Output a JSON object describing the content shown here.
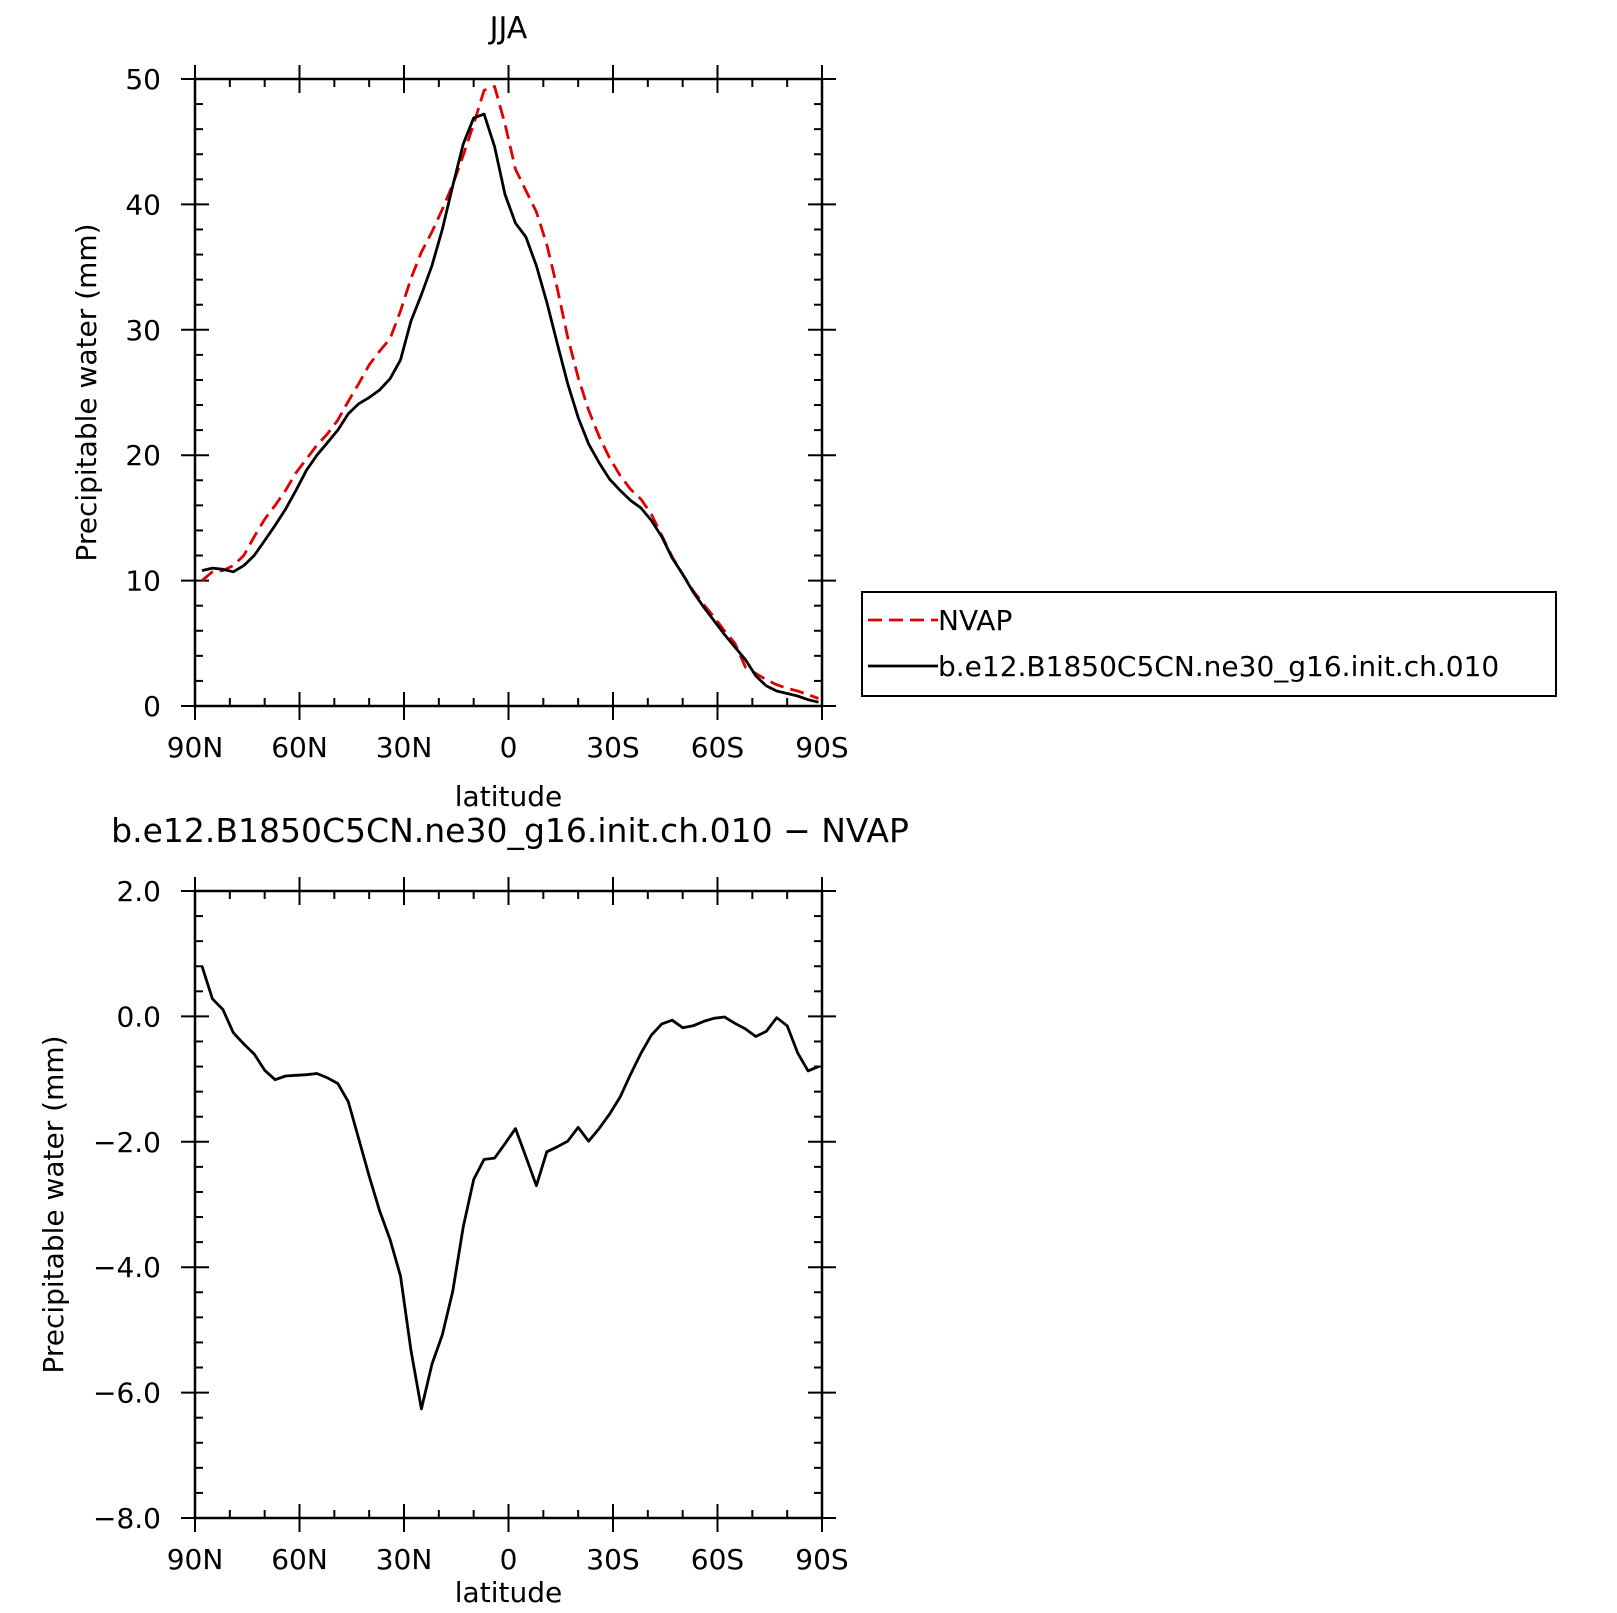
{
  "chart_data": [
    {
      "type": "line",
      "title": "JJA",
      "xlabel": "latitude",
      "ylabel": "Precipitable water (mm)",
      "xlim": [
        90,
        -90
      ],
      "ylim": [
        0,
        50
      ],
      "xticks": [
        90,
        60,
        30,
        0,
        -30,
        -60,
        -90
      ],
      "xtick_labels": [
        "90N",
        "60N",
        "30N",
        "0",
        "30S",
        "60S",
        "90S"
      ],
      "yticks": [
        0,
        10,
        20,
        30,
        40,
        50
      ],
      "ytick_labels": [
        "0",
        "10",
        "20",
        "30",
        "40",
        "50"
      ],
      "legend_position": "right",
      "series": [
        {
          "name": "NVAP",
          "color": "#e00000",
          "style": "dashed",
          "x": [
            88,
            85,
            82,
            79,
            76,
            73,
            70,
            67,
            64,
            61,
            58,
            55,
            52,
            49,
            46,
            43,
            40,
            37,
            34,
            31,
            28,
            25,
            22,
            19,
            16,
            13,
            10,
            7,
            4,
            1,
            -2,
            -5,
            -8,
            -11,
            -14,
            -17,
            -20,
            -23,
            -26,
            -29,
            -32,
            -35,
            -38,
            -41,
            -44,
            -47,
            -50,
            -53,
            -56,
            -59,
            -62,
            -65,
            -68,
            -71,
            -74,
            -77,
            -80,
            -83,
            -86,
            -89
          ],
          "y": [
            10.0,
            10.7,
            10.8,
            11.2,
            12.0,
            13.5,
            14.9,
            16.0,
            17.2,
            18.6,
            19.7,
            20.8,
            21.7,
            22.8,
            24.3,
            25.7,
            27.2,
            28.3,
            29.3,
            31.5,
            34.1,
            36.2,
            37.8,
            39.6,
            41.6,
            43.9,
            46.4,
            49.1,
            49.4,
            46.4,
            42.8,
            41.1,
            39.4,
            36.8,
            33.3,
            29.4,
            26.2,
            23.6,
            21.5,
            19.8,
            18.4,
            17.3,
            16.5,
            15.3,
            13.6,
            11.9,
            10.5,
            9.2,
            8.1,
            7.1,
            6.0,
            5.0,
            3.1,
            2.6,
            2.1,
            1.7,
            1.4,
            1.2,
            0.9,
            0.6
          ]
        },
        {
          "name": "b.e12.B1850C5CN.ne30_g16.init.ch.010",
          "color": "#000000",
          "style": "solid",
          "x": [
            88,
            85,
            82,
            79,
            76,
            73,
            70,
            67,
            64,
            61,
            58,
            55,
            52,
            49,
            46,
            43,
            40,
            37,
            34,
            31,
            28,
            25,
            22,
            19,
            16,
            13,
            10,
            7,
            4,
            1,
            -2,
            -5,
            -8,
            -11,
            -14,
            -17,
            -20,
            -23,
            -26,
            -29,
            -32,
            -35,
            -38,
            -41,
            -44,
            -47,
            -50,
            -53,
            -56,
            -59,
            -62,
            -65,
            -68,
            -71,
            -74,
            -77,
            -80,
            -83,
            -86,
            -89
          ],
          "y": [
            10.8,
            11.0,
            10.9,
            10.7,
            11.2,
            12.0,
            13.2,
            14.4,
            15.7,
            17.2,
            18.8,
            20.0,
            21.0,
            22.0,
            23.3,
            24.1,
            24.6,
            25.2,
            26.1,
            27.6,
            30.7,
            32.8,
            35.1,
            38.0,
            41.5,
            44.8,
            46.9,
            47.2,
            44.6,
            40.8,
            38.5,
            37.4,
            35.1,
            32.2,
            28.9,
            25.7,
            23.0,
            20.9,
            19.4,
            18.1,
            17.2,
            16.4,
            15.8,
            14.8,
            13.5,
            11.8,
            10.5,
            9.1,
            7.9,
            6.8,
            5.7,
            4.7,
            3.7,
            2.4,
            1.6,
            1.2,
            1.0,
            0.8,
            0.5,
            0.3
          ]
        }
      ]
    },
    {
      "type": "line",
      "title": "b.e12.B1850C5CN.ne30_g16.init.ch.010 − NVAP",
      "xlabel": "latitude",
      "ylabel": "Precipitable water (mm)",
      "xlim": [
        90,
        -90
      ],
      "ylim": [
        -8,
        2
      ],
      "xticks": [
        90,
        60,
        30,
        0,
        -30,
        -60,
        -90
      ],
      "xtick_labels": [
        "90N",
        "60N",
        "30N",
        "0",
        "30S",
        "60S",
        "90S"
      ],
      "yticks": [
        2,
        0,
        -2,
        -4,
        -6,
        -8
      ],
      "ytick_labels": [
        "2.0",
        "0.0",
        "−2.0",
        "−4.0",
        "−6.0",
        "−8.0"
      ],
      "series": [
        {
          "color": "#000000",
          "style": "solid",
          "x": [
            88,
            85,
            82,
            79,
            76,
            73,
            70,
            67,
            64,
            61,
            58,
            55,
            52,
            49,
            46,
            43,
            40,
            37,
            34,
            31,
            28,
            25,
            22,
            19,
            16,
            13,
            10,
            7,
            4,
            1,
            -2,
            -5,
            -8,
            -11,
            -14,
            -17,
            -20,
            -23,
            -26,
            -29,
            -32,
            -35,
            -38,
            -41,
            -44,
            -47,
            -50,
            -53,
            -56,
            -59,
            -62,
            -65,
            -68,
            -71,
            -74,
            -77,
            -80,
            -83,
            -86,
            -89
          ],
          "y": [
            0.8,
            0.28,
            0.11,
            -0.26,
            -0.44,
            -0.6,
            -0.86,
            -1.01,
            -0.95,
            -0.94,
            -0.93,
            -0.91,
            -0.98,
            -1.07,
            -1.36,
            -1.95,
            -2.55,
            -3.1,
            -3.56,
            -4.14,
            -5.33,
            -6.26,
            -5.55,
            -5.08,
            -4.38,
            -3.36,
            -2.6,
            -2.28,
            -2.26,
            -2.03,
            -1.79,
            -2.24,
            -2.7,
            -2.16,
            -2.08,
            -1.99,
            -1.77,
            -1.99,
            -1.79,
            -1.56,
            -1.29,
            -0.93,
            -0.59,
            -0.3,
            -0.12,
            -0.06,
            -0.18,
            -0.15,
            -0.08,
            -0.03,
            -0.01,
            -0.11,
            -0.2,
            -0.32,
            -0.24,
            -0.02,
            -0.15,
            -0.58,
            -0.87,
            -0.8
          ]
        }
      ]
    }
  ]
}
